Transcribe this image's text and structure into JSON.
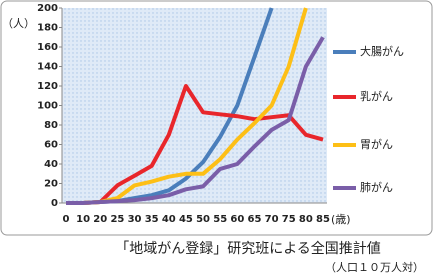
{
  "chart_data": {
    "type": "line",
    "y_label": "（人）",
    "x_label": "(歳)",
    "source": "「地域がん登録」研究班による全国推計値",
    "note": "（人口１０万人対）",
    "categories": [
      "0",
      "10",
      "20",
      "25",
      "30",
      "35",
      "40",
      "45",
      "50",
      "55",
      "60",
      "65",
      "70",
      "75",
      "80",
      "85"
    ],
    "series": [
      {
        "name": "大腸がん",
        "color": "#4a7ebb",
        "values": [
          0,
          0,
          1,
          2,
          5,
          8,
          13,
          25,
          42,
          68,
          100,
          150,
          200,
          null,
          null,
          null
        ]
      },
      {
        "name": "乳がん",
        "color": "#e8262b",
        "values": [
          0,
          0,
          1,
          18,
          28,
          38,
          70,
          120,
          93,
          91,
          89,
          86,
          88,
          90,
          70,
          65
        ]
      },
      {
        "name": "胃がん",
        "color": "#fdbf16",
        "values": [
          0,
          0,
          1,
          5,
          18,
          22,
          27,
          30,
          30,
          45,
          65,
          82,
          100,
          140,
          200,
          null
        ]
      },
      {
        "name": "肺がん",
        "color": "#7a5ea8",
        "values": [
          0,
          0,
          1,
          2,
          3,
          5,
          8,
          14,
          17,
          35,
          40,
          58,
          75,
          85,
          140,
          170
        ]
      }
    ],
    "ylim": [
      0,
      200
    ],
    "yticks": [
      0,
      20,
      40,
      60,
      80,
      100,
      120,
      140,
      160,
      180,
      200
    ],
    "grid": false
  }
}
